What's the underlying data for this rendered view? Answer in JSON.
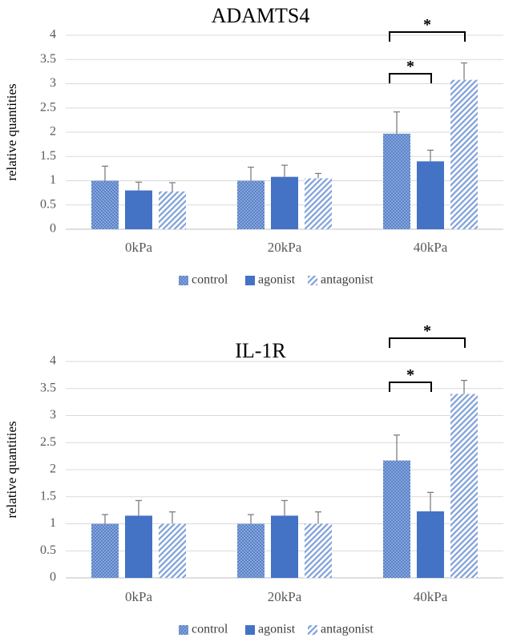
{
  "colors": {
    "control": "#6f93cf",
    "agonist": "#4472c4",
    "antagonist": "#9db5e2",
    "grid": "#d9d9d9"
  },
  "chart_data": [
    {
      "type": "bar",
      "title": "ADAMTS4",
      "ylabel": "relative quantities",
      "xlabel": "",
      "ylim": [
        0,
        4
      ],
      "yticks": [
        "0",
        "0.5",
        "1",
        "1.5",
        "2",
        "2.5",
        "3",
        "3.5",
        "4"
      ],
      "categories": [
        "0kPa",
        "20kPa",
        "40kPa"
      ],
      "grid": true,
      "legend_position": "bottom",
      "series": [
        {
          "name": "control",
          "values": [
            1.0,
            1.0,
            1.97
          ],
          "errors": [
            0.3,
            0.28,
            0.45
          ]
        },
        {
          "name": "agonist",
          "values": [
            0.8,
            1.08,
            1.4
          ],
          "errors": [
            0.17,
            0.24,
            0.23
          ]
        },
        {
          "name": "antagonist",
          "values": [
            0.78,
            1.05,
            3.08
          ],
          "errors": [
            0.18,
            0.1,
            0.35
          ]
        }
      ],
      "significance": [
        {
          "category": "40kPa",
          "from": "control",
          "to": "agonist",
          "label": "*"
        },
        {
          "category": "40kPa",
          "from": "control",
          "to": "antagonist",
          "label": "*"
        }
      ]
    },
    {
      "type": "bar",
      "title": "IL-1R",
      "ylabel": "relative quantities",
      "xlabel": "",
      "ylim": [
        0,
        4
      ],
      "yticks": [
        "0",
        "0.5",
        "1",
        "1.5",
        "2",
        "2.5",
        "3",
        "3.5",
        "4"
      ],
      "categories": [
        "0kPa",
        "20kPa",
        "40kPa"
      ],
      "grid": true,
      "legend_position": "bottom",
      "series": [
        {
          "name": "control",
          "values": [
            1.0,
            1.0,
            2.17
          ],
          "errors": [
            0.17,
            0.17,
            0.47
          ]
        },
        {
          "name": "agonist",
          "values": [
            1.15,
            1.15,
            1.23
          ],
          "errors": [
            0.28,
            0.28,
            0.35
          ]
        },
        {
          "name": "antagonist",
          "values": [
            1.0,
            1.0,
            3.4
          ],
          "errors": [
            0.22,
            0.22,
            0.25
          ]
        }
      ],
      "significance": [
        {
          "category": "40kPa",
          "from": "control",
          "to": "agonist",
          "label": "*"
        },
        {
          "category": "40kPa",
          "from": "control",
          "to": "antagonist",
          "label": "*"
        }
      ]
    }
  ]
}
